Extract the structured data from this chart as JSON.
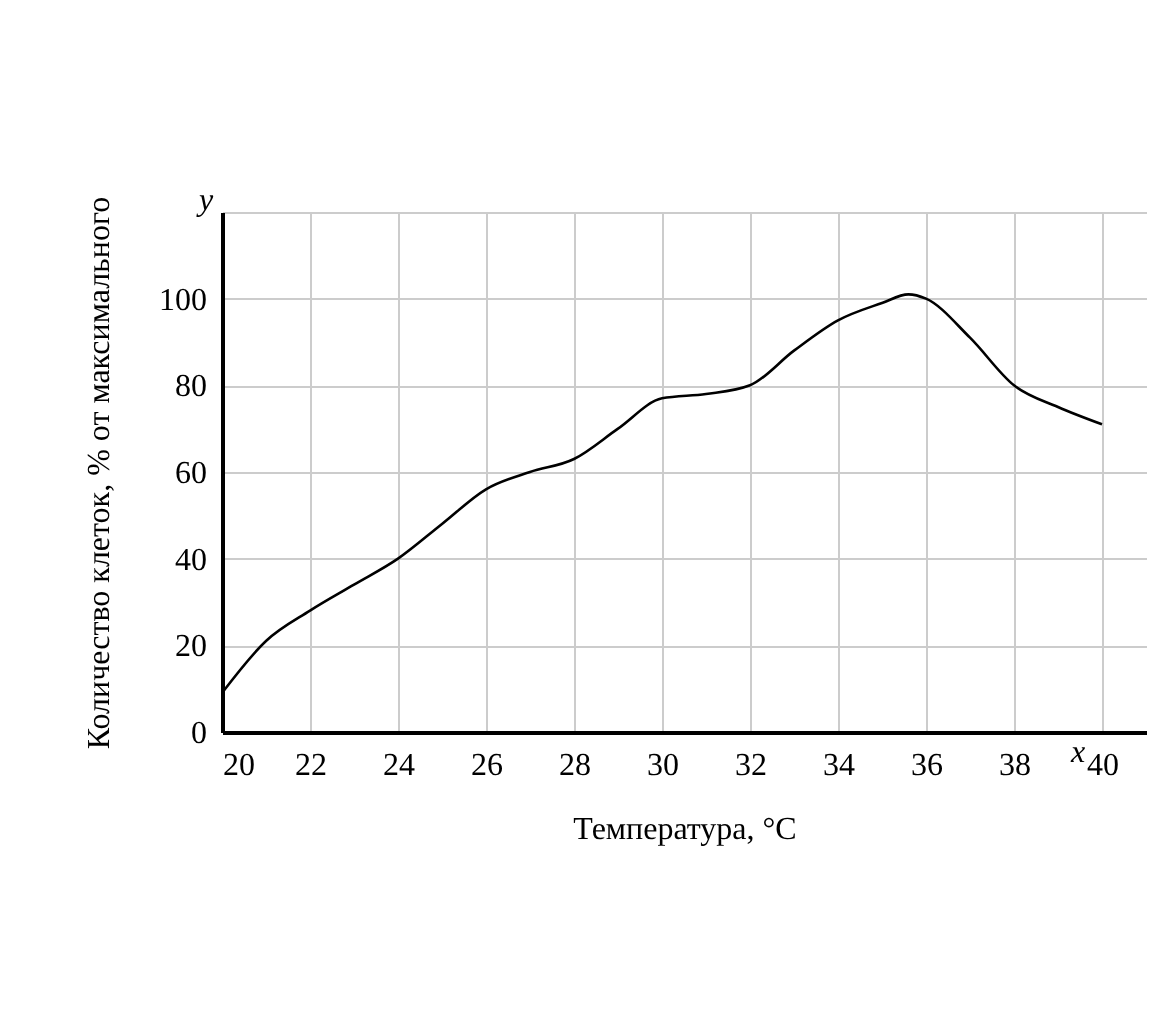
{
  "chart_data": {
    "type": "line",
    "xlabel": "Температура, °C",
    "ylabel": "Количество клеток, % от максимального",
    "x": [
      20,
      21,
      22,
      23,
      24,
      25,
      26,
      27,
      28,
      29,
      30,
      31,
      32,
      33,
      34,
      35,
      35.6,
      36,
      37,
      38,
      39,
      40
    ],
    "series": [
      {
        "color": "#000000",
        "values": [
          9,
          21,
          28,
          34,
          40,
          48,
          56,
          60,
          63,
          70,
          77,
          78,
          80,
          88,
          95,
          99,
          101,
          100,
          91,
          80,
          75,
          71
        ]
      }
    ],
    "xlim": [
      20,
      41
    ],
    "ylim": [
      0,
      120
    ],
    "xticks": [
      20,
      22,
      24,
      26,
      28,
      30,
      32,
      34,
      36,
      38,
      40
    ],
    "yticks": [
      0,
      20,
      40,
      60,
      80,
      100,
      {
        "value": 120,
        "label": null
      }
    ],
    "grid": true,
    "marker": "none",
    "annotations": [
      "y",
      "x"
    ]
  }
}
